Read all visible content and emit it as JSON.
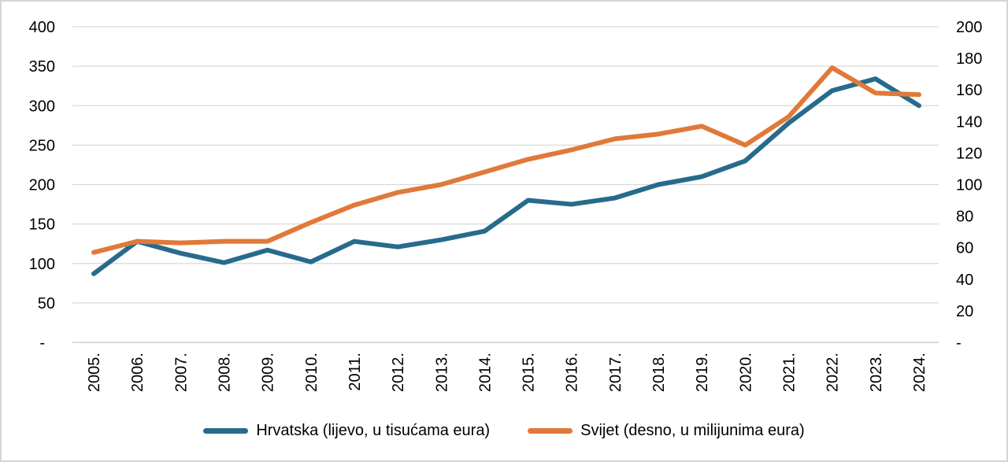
{
  "chart_data": {
    "type": "line",
    "title": "",
    "categories": [
      "2005.",
      "2006.",
      "2007.",
      "2008.",
      "2009.",
      "2010.",
      "2011.",
      "2012.",
      "2013.",
      "2014.",
      "2015.",
      "2016.",
      "2017.",
      "2018.",
      "2019.",
      "2020.",
      "2021.",
      "2022.",
      "2023.",
      "2024."
    ],
    "series": [
      {
        "name": "Hrvatska (lijevo, u tisućama eura)",
        "axis": "left",
        "color": "#276b8c",
        "values": [
          87,
          128,
          113,
          101,
          117,
          102,
          128,
          121,
          130,
          141,
          180,
          175,
          183,
          200,
          210,
          230,
          278,
          319,
          334,
          300
        ]
      },
      {
        "name": "Svijet (desno, u milijunima eura)",
        "axis": "right",
        "color": "#e0793a",
        "values": [
          57,
          64,
          63,
          64,
          64,
          76,
          87,
          95,
          100,
          108,
          116,
          122,
          129,
          132,
          137,
          125,
          143,
          174,
          158,
          157
        ]
      }
    ],
    "left_axis": {
      "min": 0,
      "max": 400,
      "step": 50,
      "ticks": [
        "400",
        "350",
        "300",
        "250",
        "200",
        "150",
        "100",
        "50",
        "-"
      ],
      "zero_label": "-"
    },
    "right_axis": {
      "min": 0,
      "max": 200,
      "step": 20,
      "ticks": [
        "200",
        "180",
        "160",
        "140",
        "120",
        "100",
        "80",
        "60",
        "40",
        "20",
        "-"
      ],
      "zero_label": "-"
    },
    "grid": "horizontal",
    "legend_position": "bottom",
    "colors": {
      "gridline": "#d9d9d9",
      "axis_line": "#c3c3c3",
      "tick_text": "#000000",
      "background": "#ffffff"
    }
  }
}
